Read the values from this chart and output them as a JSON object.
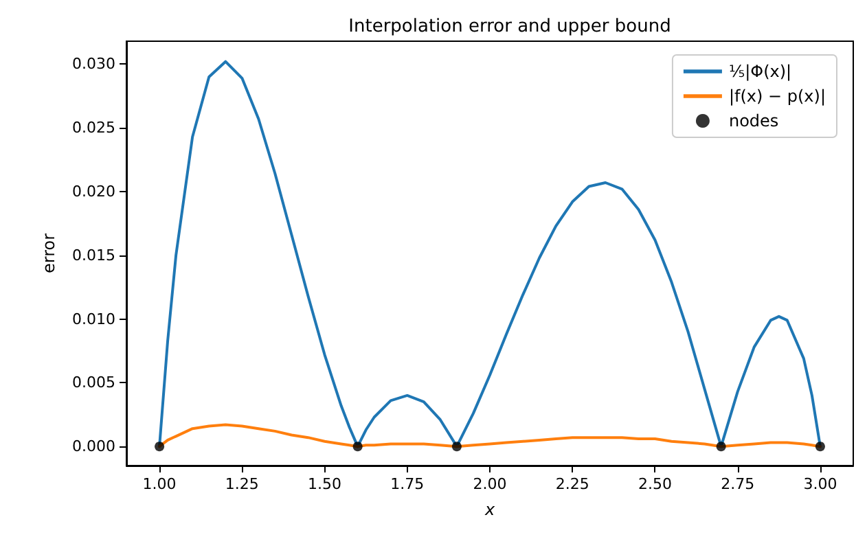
{
  "chart_data": {
    "type": "line",
    "title": "Interpolation error and upper bound",
    "xlabel": "x",
    "ylabel": "error",
    "xlim": [
      0.9,
      3.1
    ],
    "xticks": [
      {
        "value": 1,
        "label": "1.00"
      },
      {
        "value": 1.25,
        "label": "1.25"
      },
      {
        "value": 1.5,
        "label": "1.50"
      },
      {
        "value": 1.75,
        "label": "1.75"
      },
      {
        "value": 2,
        "label": "2.00"
      },
      {
        "value": 2.25,
        "label": "2.25"
      },
      {
        "value": 2.5,
        "label": "2.50"
      },
      {
        "value": 2.75,
        "label": "2.75"
      },
      {
        "value": 3,
        "label": "3.00"
      }
    ],
    "ylim": [
      -0.0015,
      0.0318
    ],
    "yticks": [
      {
        "value": 0,
        "label": "0.000"
      },
      {
        "value": 0.005,
        "label": "0.005"
      },
      {
        "value": 0.01,
        "label": "0.010"
      },
      {
        "value": 0.015,
        "label": "0.015"
      },
      {
        "value": 0.02,
        "label": "0.020"
      },
      {
        "value": 0.025,
        "label": "0.025"
      },
      {
        "value": 0.03,
        "label": "0.030"
      }
    ],
    "grid": false,
    "legend": "top right",
    "series": [
      {
        "name": "⅕|Φ(x)|",
        "type": "line",
        "color": "#1f77b4",
        "marker": "none",
        "x": [
          1,
          1.025,
          1.05,
          1.1,
          1.15,
          1.2,
          1.25,
          1.3,
          1.35,
          1.4,
          1.45,
          1.5,
          1.55,
          1.575,
          1.6,
          1.625,
          1.65,
          1.7,
          1.75,
          1.8,
          1.85,
          1.9,
          1.95,
          2,
          2.05,
          2.1,
          2.15,
          2.2,
          2.25,
          2.3,
          2.35,
          2.4,
          2.45,
          2.5,
          2.55,
          2.6,
          2.65,
          2.7,
          2.75,
          2.8,
          2.85,
          2.875,
          2.9,
          2.95,
          2.975,
          3
        ],
        "values": [
          0,
          0.0083,
          0.015,
          0.0243,
          0.029,
          0.0302,
          0.0289,
          0.0257,
          0.0214,
          0.0166,
          0.0118,
          0.0072,
          0.0032,
          0.0015,
          0,
          0.0013,
          0.0023,
          0.0036,
          0.004,
          0.0035,
          0.0021,
          0,
          0.0026,
          0.0056,
          0.0088,
          0.0119,
          0.0148,
          0.0173,
          0.0192,
          0.0204,
          0.0207,
          0.0202,
          0.0186,
          0.0162,
          0.0129,
          0.009,
          0.0045,
          0,
          0.0043,
          0.0078,
          0.0099,
          0.0102,
          0.0099,
          0.0069,
          0.004,
          0
        ]
      },
      {
        "name": "|f(x) − p(x)|",
        "type": "line",
        "color": "#ff7f0e",
        "marker": "none",
        "x": [
          1,
          1.025,
          1.05,
          1.1,
          1.15,
          1.2,
          1.25,
          1.3,
          1.35,
          1.4,
          1.45,
          1.5,
          1.55,
          1.575,
          1.6,
          1.625,
          1.65,
          1.7,
          1.75,
          1.8,
          1.85,
          1.9,
          1.95,
          2,
          2.05,
          2.1,
          2.15,
          2.2,
          2.25,
          2.3,
          2.35,
          2.4,
          2.45,
          2.5,
          2.55,
          2.6,
          2.65,
          2.7,
          2.75,
          2.8,
          2.85,
          2.875,
          2.9,
          2.95,
          2.975,
          3
        ],
        "values": [
          0,
          0.0005,
          0.0008,
          0.0014,
          0.0016,
          0.0017,
          0.0016,
          0.0014,
          0.0012,
          0.0009,
          0.0007,
          0.0004,
          0.0002,
          0.0001,
          0,
          0.0001,
          0.0001,
          0.0002,
          0.0002,
          0.0002,
          0.0001,
          0,
          0.0001,
          0.0002,
          0.0003,
          0.0004,
          0.0005,
          0.0006,
          0.0007,
          0.0007,
          0.0007,
          0.0007,
          0.0006,
          0.0006,
          0.0004,
          0.0003,
          0.0002,
          0,
          0.0001,
          0.0002,
          0.0003,
          0.0003,
          0.0003,
          0.0002,
          0.0001,
          0
        ]
      },
      {
        "name": "nodes",
        "type": "scatter",
        "color": "#000000",
        "marker": "circle",
        "x": [
          1,
          1.6,
          1.9,
          2.7,
          3
        ],
        "values": [
          0,
          0,
          0,
          0,
          0
        ]
      }
    ]
  }
}
